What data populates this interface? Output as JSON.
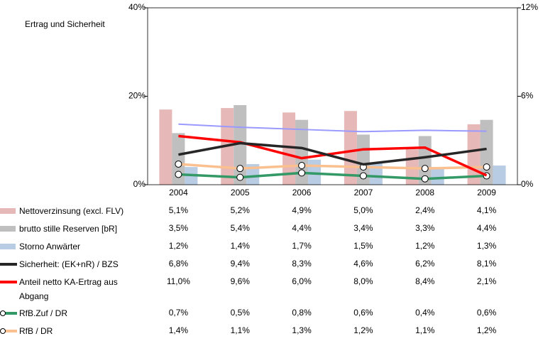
{
  "chart_data": {
    "type": "combo",
    "title": "Ertrag und Sicherheit",
    "categories": [
      "2004",
      "2005",
      "2006",
      "2007",
      "2008",
      "2009"
    ],
    "ylim": [
      0,
      40
    ],
    "yticks": [
      {
        "value": 0,
        "label": "0%"
      },
      {
        "value": 20,
        "label": "20%"
      },
      {
        "value": 40,
        "label": "40%"
      }
    ],
    "y2lim": [
      0,
      12
    ],
    "y2ticks": [
      {
        "value": 0,
        "label": "0%"
      },
      {
        "value": 6,
        "label": "6%"
      },
      {
        "value": 12,
        "label": "12%"
      }
    ],
    "series": [
      {
        "name": "Nettoverzinsung (excl. FLV)",
        "kind": "bar",
        "axis": "y2",
        "color": "#e6b8b7",
        "values": [
          5.1,
          5.2,
          4.9,
          5.0,
          2.4,
          4.1
        ],
        "value_labels": [
          "5,1%",
          "5,2%",
          "4,9%",
          "5,0%",
          "2,4%",
          "4,1%"
        ]
      },
      {
        "name": "brutto stille Reserven [bR]",
        "kind": "bar",
        "axis": "y2",
        "color": "#bfbfbf",
        "values": [
          3.5,
          5.4,
          4.4,
          3.4,
          3.3,
          4.4
        ],
        "value_labels": [
          "3,5%",
          "5,4%",
          "4,4%",
          "3,4%",
          "3,3%",
          "4,4%"
        ]
      },
      {
        "name": "Storno Anwärter",
        "kind": "bar",
        "axis": "y2",
        "color": "#b8cce4",
        "values": [
          1.2,
          1.4,
          1.7,
          1.5,
          1.2,
          1.3
        ],
        "value_labels": [
          "1,2%",
          "1,4%",
          "1,7%",
          "1,5%",
          "1,2%",
          "1,3%"
        ]
      },
      {
        "name": "Sicherheit: (EK+nR) / BZS",
        "kind": "line",
        "axis": "y",
        "color": "#262626",
        "values": [
          6.8,
          9.4,
          8.3,
          4.6,
          6.2,
          8.1
        ],
        "value_labels": [
          "6,8%",
          "9,4%",
          "8,3%",
          "4,6%",
          "6,2%",
          "8,1%"
        ]
      },
      {
        "name": "Anteil netto KA-Ertrag aus Abgang",
        "kind": "line",
        "axis": "y",
        "color": "#ff0000",
        "values": [
          11.0,
          9.6,
          6.0,
          8.0,
          8.4,
          2.1
        ],
        "value_labels": [
          "11,0%",
          "9,6%",
          "6,0%",
          "8,0%",
          "8,4%",
          "2,1%"
        ]
      },
      {
        "name": "RfB.Zuf / DR",
        "kind": "line",
        "axis": "y2",
        "marker": true,
        "color": "#339966",
        "values": [
          0.7,
          0.5,
          0.8,
          0.6,
          0.4,
          0.6
        ],
        "value_labels": [
          "0,7%",
          "0,5%",
          "0,8%",
          "0,6%",
          "0,4%",
          "0,6%"
        ]
      },
      {
        "name": "RfB / DR",
        "kind": "line",
        "axis": "y2",
        "marker": true,
        "color": "#fac090",
        "values": [
          1.4,
          1.1,
          1.3,
          1.2,
          1.1,
          1.2
        ],
        "value_labels": [
          "1,4%",
          "1,1%",
          "1,3%",
          "1,2%",
          "1,1%",
          "1,2%"
        ]
      },
      {
        "kind": "line",
        "axis": "y",
        "color": "#9999ff",
        "values": [
          13.7,
          13.0,
          12.5,
          12.0,
          12.3,
          12.1
        ]
      }
    ]
  }
}
